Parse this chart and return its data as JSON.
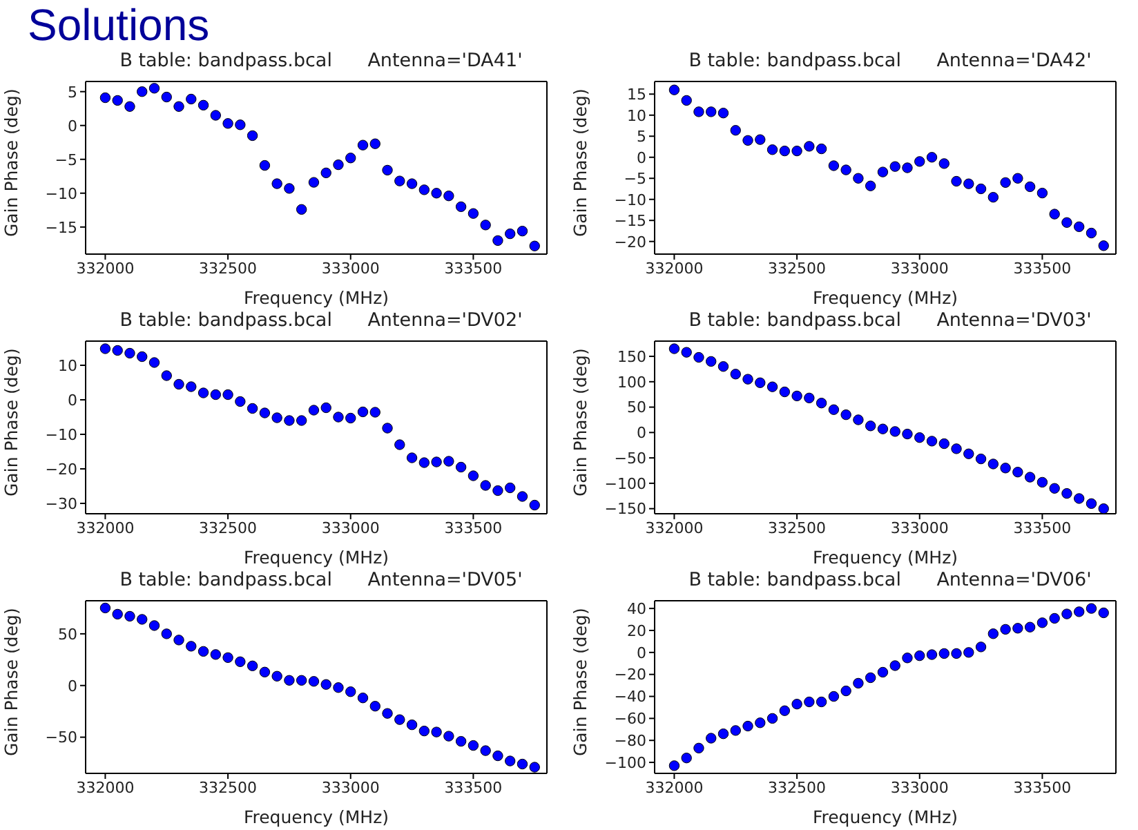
{
  "chart_data": [
    {
      "type": "scatter",
      "title": "B table: bandpass.bcal      Antenna='DA41'",
      "xlabel": "Frequency (MHz)",
      "ylabel": "Gain Phase (deg)",
      "annotations": [
        "Solutions"
      ],
      "marker": "circle",
      "x": [
        332000,
        332050,
        332100,
        332150,
        332200,
        332250,
        332300,
        332350,
        332400,
        332450,
        332500,
        332550,
        332600,
        332650,
        332700,
        332750,
        332800,
        332850,
        332900,
        332950,
        333000,
        333050,
        333100,
        333150,
        333200,
        333250,
        333300,
        333350,
        333400,
        333450,
        333500,
        333550,
        333600,
        333650,
        333700,
        333750
      ],
      "series": [
        {
          "color": "#0000ff",
          "values": [
            4.1,
            3.7,
            2.8,
            5.0,
            5.5,
            4.2,
            2.8,
            3.9,
            3.0,
            1.5,
            0.3,
            0.1,
            -1.5,
            -5.9,
            -8.6,
            -9.3,
            -12.4,
            -8.4,
            -7.0,
            -5.8,
            -4.8,
            -2.9,
            -2.7,
            -6.6,
            -8.2,
            -8.6,
            -9.5,
            -10.0,
            -10.4,
            -12.0,
            -13.0,
            -14.7,
            -17.0,
            -16.0,
            -15.6,
            -17.8
          ]
        }
      ],
      "xlim": [
        331920,
        333800
      ],
      "xticks": [
        332000,
        332500,
        333000,
        333500
      ],
      "ylim": [
        -19,
        6.5
      ],
      "yticks": [
        -15,
        -10,
        -5,
        0,
        5
      ]
    },
    {
      "type": "scatter",
      "title": "B table: bandpass.bcal      Antenna='DA42'",
      "xlabel": "Frequency (MHz)",
      "ylabel": "Gain Phase (deg)",
      "marker": "circle",
      "x": [
        332000,
        332050,
        332100,
        332150,
        332200,
        332250,
        332300,
        332350,
        332400,
        332450,
        332500,
        332550,
        332600,
        332650,
        332700,
        332750,
        332800,
        332850,
        332900,
        332950,
        333000,
        333050,
        333100,
        333150,
        333200,
        333250,
        333300,
        333350,
        333400,
        333450,
        333500,
        333550,
        333600,
        333650,
        333700,
        333750
      ],
      "series": [
        {
          "color": "#0000ff",
          "values": [
            16,
            13.5,
            10.8,
            10.8,
            10.5,
            6.4,
            4,
            4.2,
            1.8,
            1.5,
            1.5,
            2.6,
            2.0,
            -2,
            -3,
            -5,
            -6.8,
            -3.5,
            -2.2,
            -2.5,
            -1,
            0,
            -1.5,
            -5.7,
            -6.3,
            -7.5,
            -9.5,
            -6,
            -5,
            -7,
            -8.5,
            -13.5,
            -15.5,
            -16.5,
            -18,
            -21
          ]
        }
      ],
      "xlim": [
        331920,
        333800
      ],
      "xticks": [
        332000,
        332500,
        333000,
        333500
      ],
      "ylim": [
        -23,
        18
      ],
      "yticks": [
        -20,
        -15,
        -10,
        -5,
        0,
        5,
        10,
        15
      ]
    },
    {
      "type": "scatter",
      "title": "B table: bandpass.bcal      Antenna='DV02'",
      "xlabel": "Frequency (MHz)",
      "ylabel": "Gain Phase (deg)",
      "marker": "circle",
      "x": [
        332000,
        332050,
        332100,
        332150,
        332200,
        332250,
        332300,
        332350,
        332400,
        332450,
        332500,
        332550,
        332600,
        332650,
        332700,
        332750,
        332800,
        332850,
        332900,
        332950,
        333000,
        333050,
        333100,
        333150,
        333200,
        333250,
        333300,
        333350,
        333400,
        333450,
        333500,
        333550,
        333600,
        333650,
        333700,
        333750
      ],
      "series": [
        {
          "color": "#0000ff",
          "values": [
            14.8,
            14.3,
            13.5,
            12.5,
            10.8,
            7.0,
            4.5,
            3.8,
            2,
            1.5,
            1.5,
            -0.5,
            -2.5,
            -3.8,
            -5.2,
            -6,
            -6,
            -3,
            -2.3,
            -5,
            -5.3,
            -3.5,
            -3.6,
            -8.2,
            -13,
            -16.8,
            -18.2,
            -18,
            -17.8,
            -19.5,
            -22,
            -24.8,
            -26.3,
            -25.5,
            -28,
            -30.5
          ]
        }
      ],
      "xlim": [
        331920,
        333800
      ],
      "xticks": [
        332000,
        332500,
        333000,
        333500
      ],
      "ylim": [
        -33,
        17
      ],
      "yticks": [
        -30,
        -20,
        -10,
        0,
        10
      ]
    },
    {
      "type": "scatter",
      "title": "B table: bandpass.bcal      Antenna='DV03'",
      "xlabel": "Frequency (MHz)",
      "ylabel": "Gain Phase (deg)",
      "marker": "circle",
      "x": [
        332000,
        332050,
        332100,
        332150,
        332200,
        332250,
        332300,
        332350,
        332400,
        332450,
        332500,
        332550,
        332600,
        332650,
        332700,
        332750,
        332800,
        332850,
        332900,
        332950,
        333000,
        333050,
        333100,
        333150,
        333200,
        333250,
        333300,
        333350,
        333400,
        333450,
        333500,
        333550,
        333600,
        333650,
        333700,
        333750
      ],
      "series": [
        {
          "color": "#0000ff",
          "values": [
            165,
            158,
            148,
            140,
            130,
            115,
            105,
            98,
            90,
            80,
            72,
            68,
            58,
            45,
            35,
            25,
            13,
            7,
            2,
            -3,
            -10,
            -17,
            -22,
            -32,
            -42,
            -52,
            -62,
            -70,
            -78,
            -88,
            -98,
            -110,
            -120,
            -130,
            -140,
            -150
          ]
        }
      ],
      "xlim": [
        331920,
        333800
      ],
      "xticks": [
        332000,
        332500,
        333000,
        333500
      ],
      "ylim": [
        -160,
        180
      ],
      "yticks": [
        -150,
        -100,
        -50,
        0,
        50,
        100,
        150
      ]
    },
    {
      "type": "scatter",
      "title": "B table: bandpass.bcal      Antenna='DV05'",
      "xlabel": "Frequency (MHz)",
      "ylabel": "Gain Phase (deg)",
      "marker": "circle",
      "x": [
        332000,
        332050,
        332100,
        332150,
        332200,
        332250,
        332300,
        332350,
        332400,
        332450,
        332500,
        332550,
        332600,
        332650,
        332700,
        332750,
        332800,
        332850,
        332900,
        332950,
        333000,
        333050,
        333100,
        333150,
        333200,
        333250,
        333300,
        333350,
        333400,
        333450,
        333500,
        333550,
        333600,
        333650,
        333700,
        333750
      ],
      "series": [
        {
          "color": "#0000ff",
          "values": [
            75,
            69,
            67,
            64,
            58,
            50,
            44,
            38,
            33,
            30,
            27,
            23,
            19,
            13,
            9,
            5,
            5,
            4,
            1,
            -2,
            -6,
            -12,
            -20,
            -27,
            -33,
            -38,
            -44,
            -45,
            -49,
            -54,
            -58,
            -63,
            -68,
            -73,
            -76,
            -79
          ]
        }
      ],
      "xlim": [
        331920,
        333800
      ],
      "xticks": [
        332000,
        332500,
        333000,
        333500
      ],
      "ylim": [
        -85,
        82
      ],
      "yticks": [
        -50,
        0,
        50
      ]
    },
    {
      "type": "scatter",
      "title": "B table: bandpass.bcal      Antenna='DV06'",
      "xlabel": "Frequency (MHz)",
      "ylabel": "Gain Phase (deg)",
      "marker": "circle",
      "x": [
        332000,
        332050,
        332100,
        332150,
        332200,
        332250,
        332300,
        332350,
        332400,
        332450,
        332500,
        332550,
        332600,
        332650,
        332700,
        332750,
        332800,
        332850,
        332900,
        332950,
        333000,
        333050,
        333100,
        333150,
        333200,
        333250,
        333300,
        333350,
        333400,
        333450,
        333500,
        333550,
        333600,
        333650,
        333700,
        333750
      ],
      "series": [
        {
          "color": "#0000ff",
          "values": [
            -103,
            -96,
            -87,
            -78,
            -74,
            -71,
            -67,
            -64,
            -60,
            -53,
            -47,
            -45,
            -45,
            -40,
            -35,
            -28,
            -23,
            -18,
            -12,
            -5,
            -3,
            -2,
            -1,
            -1,
            0,
            5,
            17,
            21,
            22,
            23,
            27,
            31,
            35,
            37,
            40,
            36
          ]
        }
      ],
      "xlim": [
        331920,
        333800
      ],
      "xticks": [
        332000,
        332500,
        333000,
        333500
      ],
      "ylim": [
        -110,
        47
      ],
      "yticks": [
        -100,
        -80,
        -60,
        -40,
        -20,
        0,
        20,
        40
      ]
    }
  ]
}
